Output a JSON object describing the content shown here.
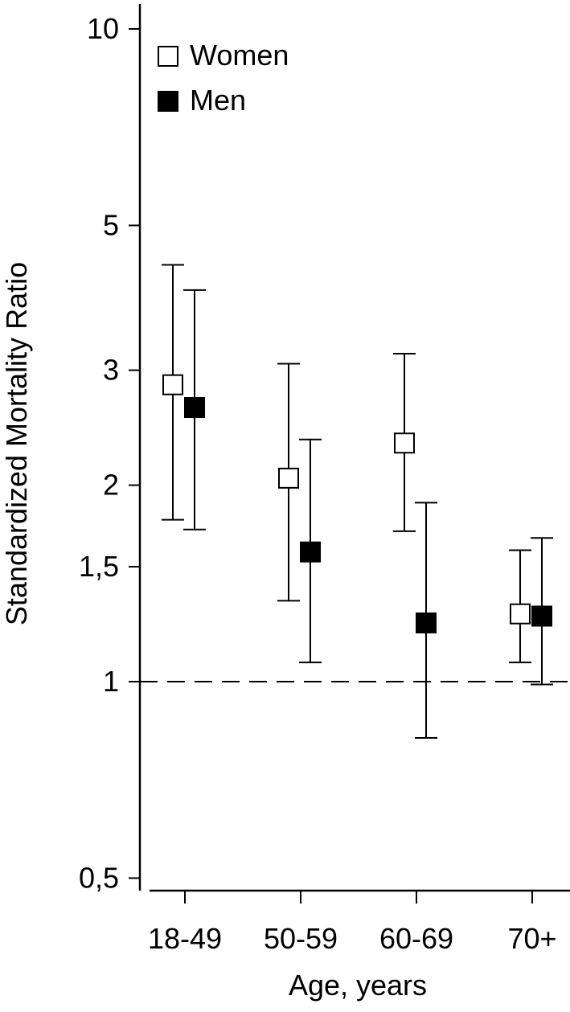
{
  "chart_data": {
    "type": "scatter",
    "xlabel": "Age, years",
    "ylabel": "Standardized Mortality Ratio",
    "y_scale": "log",
    "ylim": [
      0.46,
      12
    ],
    "yticks": [
      0.5,
      1,
      1.5,
      2,
      3,
      5,
      10
    ],
    "ytick_labels": [
      "0,5",
      "1",
      "1,5",
      "2",
      "3",
      "5",
      "10"
    ],
    "categories": [
      "18-49",
      "50-59",
      "60-69",
      "70+"
    ],
    "reference_line": {
      "y": 1,
      "style": "dashed"
    },
    "legend_position": "top-left",
    "series": [
      {
        "name": "Women",
        "marker": "open-square",
        "color": "#000000",
        "fill": "#ffffff",
        "values": [
          2.85,
          2.05,
          2.32,
          1.27
        ],
        "lower": [
          1.77,
          1.33,
          1.7,
          1.07
        ],
        "upper": [
          4.35,
          3.07,
          3.18,
          1.59
        ]
      },
      {
        "name": "Men",
        "marker": "filled-square",
        "color": "#000000",
        "fill": "#000000",
        "values": [
          2.63,
          1.58,
          1.23,
          1.26
        ],
        "lower": [
          1.71,
          1.07,
          0.82,
          0.99
        ],
        "upper": [
          3.98,
          2.35,
          1.88,
          1.66
        ]
      }
    ]
  }
}
